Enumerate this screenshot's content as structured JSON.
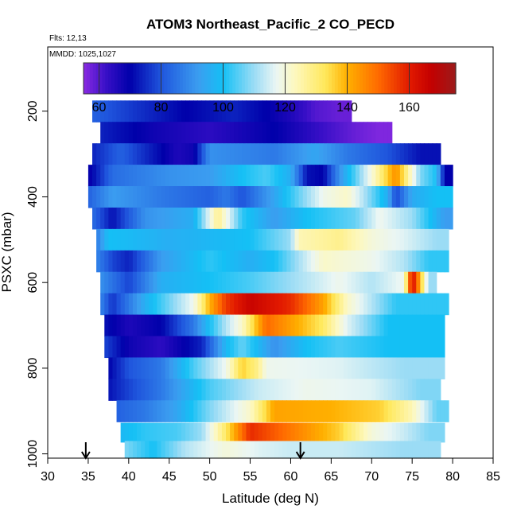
{
  "chart_data": {
    "type": "heatmap",
    "title": "ATOM3 Northeast_Pacific_2 CO_PECD",
    "flights_label": "Flts: 12,13",
    "dates_label": "MMDD: 1025,1027",
    "xlabel": "Latitude (deg N)",
    "ylabel": "PSXC (mbar)",
    "xlim": [
      30,
      85
    ],
    "ylim": [
      1010,
      50
    ],
    "x_ticks": [
      30,
      35,
      40,
      45,
      50,
      55,
      60,
      65,
      70,
      75,
      80,
      85
    ],
    "y_ticks": [
      200,
      400,
      600,
      800,
      1000
    ],
    "colorbar": {
      "range": [
        55,
        175
      ],
      "ticks": [
        60,
        80,
        100,
        120,
        140,
        160
      ],
      "stops": [
        {
          "v": 55,
          "c": "#8a2be2"
        },
        {
          "v": 62,
          "c": "#3a10c8"
        },
        {
          "v": 70,
          "c": "#0000aa"
        },
        {
          "v": 80,
          "c": "#1f55dd"
        },
        {
          "v": 92,
          "c": "#3b9df0"
        },
        {
          "v": 100,
          "c": "#14c0f5"
        },
        {
          "v": 110,
          "c": "#9bdcf5"
        },
        {
          "v": 117,
          "c": "#eaf6f4"
        },
        {
          "v": 123,
          "c": "#fdf8c0"
        },
        {
          "v": 133,
          "c": "#ffe85a"
        },
        {
          "v": 140,
          "c": "#ffb000"
        },
        {
          "v": 150,
          "c": "#ff6a00"
        },
        {
          "v": 160,
          "c": "#e21a00"
        },
        {
          "v": 167,
          "c": "#c40000"
        },
        {
          "v": 175,
          "c": "#9b1b1b"
        }
      ]
    },
    "profile_arrows": [
      34.7,
      61.2
    ],
    "rows": [
      {
        "p": 200,
        "lat_min": 35.5,
        "lat_max": 67.5,
        "segments": [
          [
            35.5,
            82
          ],
          [
            41,
            76
          ],
          [
            47,
            70
          ],
          [
            53,
            74
          ],
          [
            57,
            70
          ],
          [
            60,
            66
          ],
          [
            63,
            60
          ],
          [
            66,
            58
          ]
        ]
      },
      {
        "p": 250,
        "lat_min": 36.5,
        "lat_max": 72.5,
        "segments": [
          [
            36.5,
            74
          ],
          [
            43,
            68
          ],
          [
            50,
            64
          ],
          [
            58,
            70
          ],
          [
            64,
            62
          ],
          [
            68,
            58
          ],
          [
            71,
            56
          ]
        ]
      },
      {
        "p": 300,
        "lat_min": 35.5,
        "lat_max": 78.5,
        "segments": [
          [
            35.5,
            74
          ],
          [
            39,
            82
          ],
          [
            46,
            66
          ],
          [
            48,
            68
          ],
          [
            50,
            90
          ],
          [
            58,
            86
          ],
          [
            63,
            94
          ],
          [
            67,
            86
          ],
          [
            72,
            80
          ],
          [
            76,
            72
          ]
        ]
      },
      {
        "p": 350,
        "lat_min": 35,
        "lat_max": 80,
        "segments": [
          [
            35,
            68
          ],
          [
            38,
            84
          ],
          [
            45,
            90
          ],
          [
            50,
            92
          ],
          [
            54,
            100
          ],
          [
            57,
            104
          ],
          [
            60,
            96
          ],
          [
            62,
            72
          ],
          [
            64,
            70
          ],
          [
            66,
            90
          ],
          [
            70,
            120
          ],
          [
            73,
            145
          ],
          [
            76,
            108
          ],
          [
            78,
            100
          ],
          [
            79,
            70
          ]
        ]
      },
      {
        "p": 400,
        "lat_min": 35,
        "lat_max": 80,
        "segments": [
          [
            35,
            82
          ],
          [
            38,
            92
          ],
          [
            44,
            86
          ],
          [
            50,
            82
          ],
          [
            52,
            86
          ],
          [
            54,
            80
          ],
          [
            58,
            94
          ],
          [
            64,
            118
          ],
          [
            67,
            122
          ],
          [
            69,
            112
          ],
          [
            72,
            96
          ],
          [
            73,
            78
          ],
          [
            75,
            95
          ],
          [
            78,
            100
          ]
        ]
      },
      {
        "p": 450,
        "lat_min": 35.5,
        "lat_max": 80,
        "segments": [
          [
            35.5,
            84
          ],
          [
            38,
            72
          ],
          [
            42,
            90
          ],
          [
            48,
            96
          ],
          [
            51,
            128
          ],
          [
            54,
            102
          ],
          [
            58,
            92
          ],
          [
            62,
            100
          ],
          [
            68,
            106
          ],
          [
            71,
            118
          ],
          [
            75,
            110
          ],
          [
            79,
            92
          ]
        ]
      },
      {
        "p": 500,
        "lat_min": 36,
        "lat_max": 79.5,
        "segments": [
          [
            36,
            86
          ],
          [
            37.5,
            100
          ],
          [
            45,
            96
          ],
          [
            55,
            100
          ],
          [
            60,
            110
          ],
          [
            61,
            124
          ],
          [
            66,
            128
          ],
          [
            70,
            120
          ],
          [
            74,
            116
          ],
          [
            78,
            110
          ]
        ]
      },
      {
        "p": 550,
        "lat_min": 36,
        "lat_max": 79.5,
        "segments": [
          [
            36,
            88
          ],
          [
            38,
            78
          ],
          [
            40,
            74
          ],
          [
            44,
            92
          ],
          [
            50,
            102
          ],
          [
            55,
            96
          ],
          [
            58,
            100
          ],
          [
            64,
            122
          ],
          [
            70,
            118
          ],
          [
            74,
            112
          ],
          [
            77,
            102
          ]
        ]
      },
      {
        "p": 600,
        "lat_min": 36.5,
        "lat_max": 78,
        "segments": [
          [
            36.5,
            90
          ],
          [
            40,
            78
          ],
          [
            44,
            96
          ],
          [
            50,
            100
          ],
          [
            55,
            104
          ],
          [
            60,
            110
          ],
          [
            66,
            118
          ],
          [
            70,
            112
          ],
          [
            74,
            118
          ],
          [
            75,
            165
          ],
          [
            76,
            140
          ],
          [
            77,
            110
          ]
        ]
      },
      {
        "p": 650,
        "lat_min": 36.5,
        "lat_max": 79.5,
        "segments": [
          [
            36.5,
            88
          ],
          [
            38,
            76
          ],
          [
            42,
            96
          ],
          [
            48,
            118
          ],
          [
            50,
            140
          ],
          [
            52,
            156
          ],
          [
            55,
            166
          ],
          [
            60,
            158
          ],
          [
            64,
            142
          ],
          [
            67,
            122
          ],
          [
            70,
            112
          ],
          [
            73,
            102
          ]
        ]
      },
      {
        "p": 700,
        "lat_min": 37,
        "lat_max": 79,
        "segments": [
          [
            37,
            72
          ],
          [
            40,
            66
          ],
          [
            44,
            70
          ],
          [
            48,
            86
          ],
          [
            50,
            100
          ],
          [
            52,
            112
          ],
          [
            54,
            122
          ],
          [
            57,
            150
          ],
          [
            61,
            140
          ],
          [
            64,
            132
          ],
          [
            67,
            116
          ],
          [
            72,
            100
          ]
        ]
      },
      {
        "p": 750,
        "lat_min": 37,
        "lat_max": 79,
        "segments": [
          [
            37,
            78
          ],
          [
            40,
            68
          ],
          [
            44,
            64
          ],
          [
            49,
            74
          ],
          [
            52,
            98
          ],
          [
            54,
            106
          ],
          [
            58,
            90
          ],
          [
            62,
            100
          ],
          [
            66,
            104
          ],
          [
            72,
            100
          ]
        ]
      },
      {
        "p": 800,
        "lat_min": 37.5,
        "lat_max": 79,
        "segments": [
          [
            37.5,
            70
          ],
          [
            40,
            80
          ],
          [
            44,
            86
          ],
          [
            48,
            104
          ],
          [
            52,
            118
          ],
          [
            54,
            136
          ],
          [
            56,
            128
          ],
          [
            57,
            118
          ],
          [
            66,
            116
          ],
          [
            74,
            110
          ]
        ]
      },
      {
        "p": 850,
        "lat_min": 37.5,
        "lat_max": 78.5,
        "segments": [
          [
            37.5,
            72
          ],
          [
            40,
            78
          ],
          [
            44,
            86
          ],
          [
            50,
            104
          ],
          [
            56,
            114
          ],
          [
            62,
            118
          ],
          [
            70,
            116
          ],
          [
            76,
            108
          ]
        ]
      },
      {
        "p": 900,
        "lat_min": 38.5,
        "lat_max": 79.5,
        "segments": [
          [
            38.5,
            82
          ],
          [
            42,
            86
          ],
          [
            46,
            94
          ],
          [
            50,
            108
          ],
          [
            55,
            122
          ],
          [
            58,
            142
          ],
          [
            65,
            140
          ],
          [
            71,
            136
          ],
          [
            75,
            124
          ],
          [
            78,
            106
          ]
        ]
      },
      {
        "p": 950,
        "lat_min": 39,
        "lat_max": 79,
        "segments": [
          [
            39,
            98
          ],
          [
            42,
            102
          ],
          [
            46,
            104
          ],
          [
            49,
            110
          ],
          [
            52,
            132
          ],
          [
            55,
            158
          ],
          [
            58,
            152
          ],
          [
            62,
            144
          ],
          [
            66,
            136
          ],
          [
            70,
            120
          ],
          [
            74,
            114
          ],
          [
            77,
            108
          ]
        ]
      },
      {
        "p": 990,
        "lat_min": 39.5,
        "lat_max": 78.5,
        "segments": [
          [
            39.5,
            108
          ],
          [
            43,
            100
          ],
          [
            47,
            112
          ],
          [
            52,
            120
          ],
          [
            56,
            116
          ],
          [
            60,
            114
          ],
          [
            66,
            114
          ],
          [
            74,
            110
          ]
        ]
      }
    ]
  }
}
